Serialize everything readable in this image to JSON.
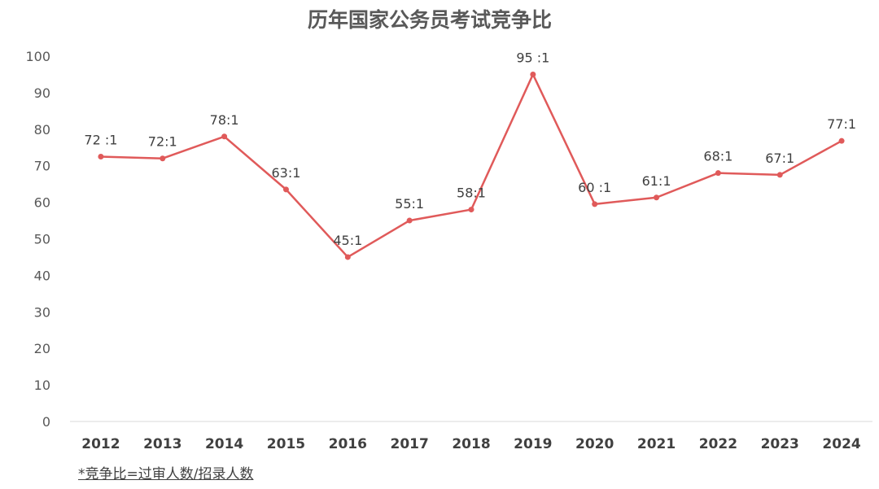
{
  "chart_data": {
    "type": "line",
    "title": "历年国家公务员考试竞争比",
    "xlabel": "",
    "ylabel": "",
    "ylim": [
      0,
      100
    ],
    "yticks": [
      0,
      10,
      20,
      30,
      40,
      50,
      60,
      70,
      80,
      90,
      100
    ],
    "grid": false,
    "categories": [
      "2012",
      "2013",
      "2014",
      "2015",
      "2016",
      "2017",
      "2018",
      "2019",
      "2020",
      "2021",
      "2022",
      "2023",
      "2024"
    ],
    "series": [
      {
        "values": [
          72.5,
          72,
          78,
          63.5,
          45,
          55,
          58,
          95,
          59.5,
          61.3,
          68,
          67.5,
          76.8
        ],
        "labels": [
          "72 :1",
          "72:1",
          "78:1",
          "63:1",
          "45:1",
          "55:1",
          "58:1",
          "95 :1",
          "60 :1",
          "61:1",
          "68:1",
          "67:1",
          "77:1"
        ],
        "color": "#E05A5A"
      }
    ],
    "footnote": "*竞争比=过审人数/招录人数"
  }
}
